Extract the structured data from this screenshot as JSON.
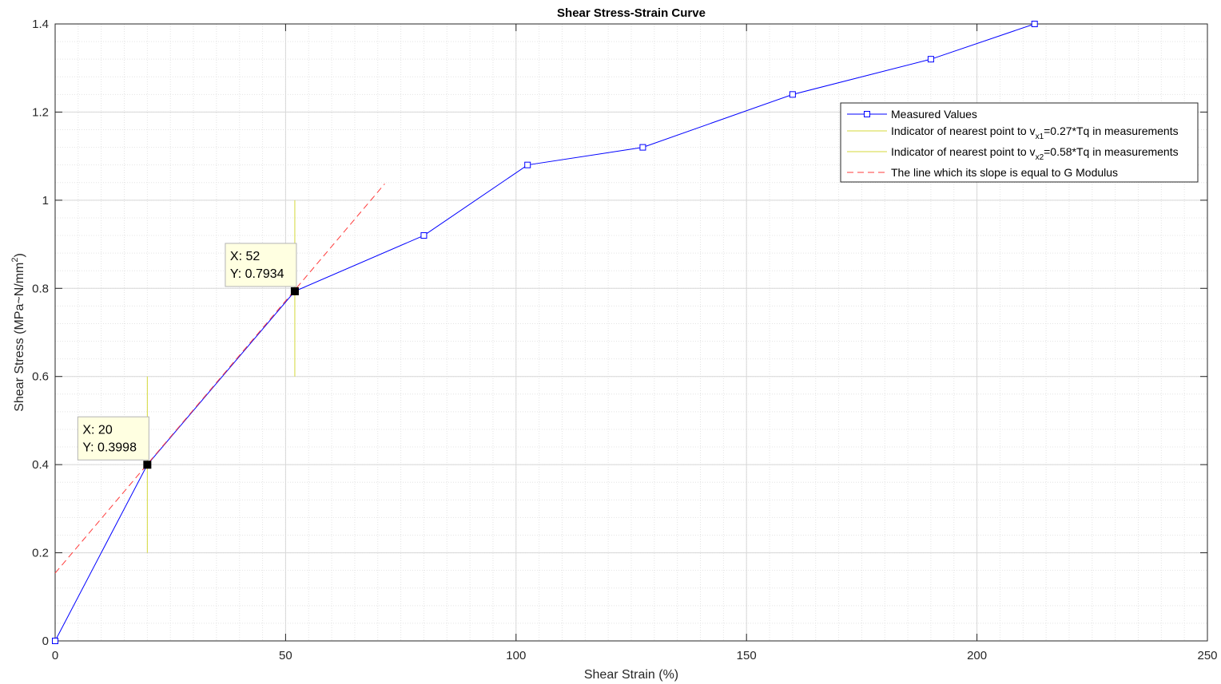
{
  "chart_data": {
    "type": "line",
    "title": "Shear Stress-Strain Curve",
    "xlabel": "Shear Strain (%)",
    "ylabel_main": "Shear Stress (MPa~N/mm",
    "ylabel_sup": "2",
    "ylabel_close": ")",
    "xlim": [
      0,
      250
    ],
    "ylim": [
      0,
      1.4
    ],
    "xticks": [
      0,
      50,
      100,
      150,
      200,
      250
    ],
    "xtick_labels": [
      "0",
      "50",
      "100",
      "150",
      "200",
      "250"
    ],
    "yticks": [
      0,
      0.2,
      0.4,
      0.6,
      0.8,
      1,
      1.2,
      1.4
    ],
    "ytick_labels": [
      "0",
      "0.2",
      "0.4",
      "0.6",
      "0.8",
      "1",
      "1.2",
      "1.4"
    ],
    "grid": "major and minor",
    "legend_position": "top-right",
    "series": [
      {
        "name": "Measured Values",
        "style": "line-square",
        "color": "#0000ff",
        "x": [
          0,
          20,
          52,
          80,
          102.5,
          127.5,
          160,
          190,
          212.5
        ],
        "y": [
          0,
          0.3998,
          0.7934,
          0.92,
          1.08,
          1.12,
          1.24,
          1.32,
          1.4
        ]
      },
      {
        "name": "Indicator of nearest point to v",
        "sub": "x1",
        "suffix": "=0.27*Tq in measurements",
        "style": "line",
        "color": "#d4d93a",
        "x": [
          20,
          20
        ],
        "y": [
          0.2,
          0.6
        ]
      },
      {
        "name": "Indicator of nearest point to v",
        "sub": "x2",
        "suffix": "=0.58*Tq in measurements",
        "style": "line",
        "color": "#d4d93a",
        "x": [
          52,
          52
        ],
        "y": [
          0.6,
          1.0
        ]
      },
      {
        "name": "The line which its slope is equal to G Modulus",
        "style": "dashed",
        "color": "#ff3b3b",
        "x": [
          0,
          71.5
        ],
        "y": [
          0.1538,
          1.0372
        ]
      }
    ],
    "datatips": [
      {
        "x": 20,
        "y": 0.3998,
        "label_x": "X: 20",
        "label_y": "Y: 0.3998"
      },
      {
        "x": 52,
        "y": 0.7934,
        "label_x": "X: 52",
        "label_y": "Y: 0.7934"
      }
    ]
  }
}
